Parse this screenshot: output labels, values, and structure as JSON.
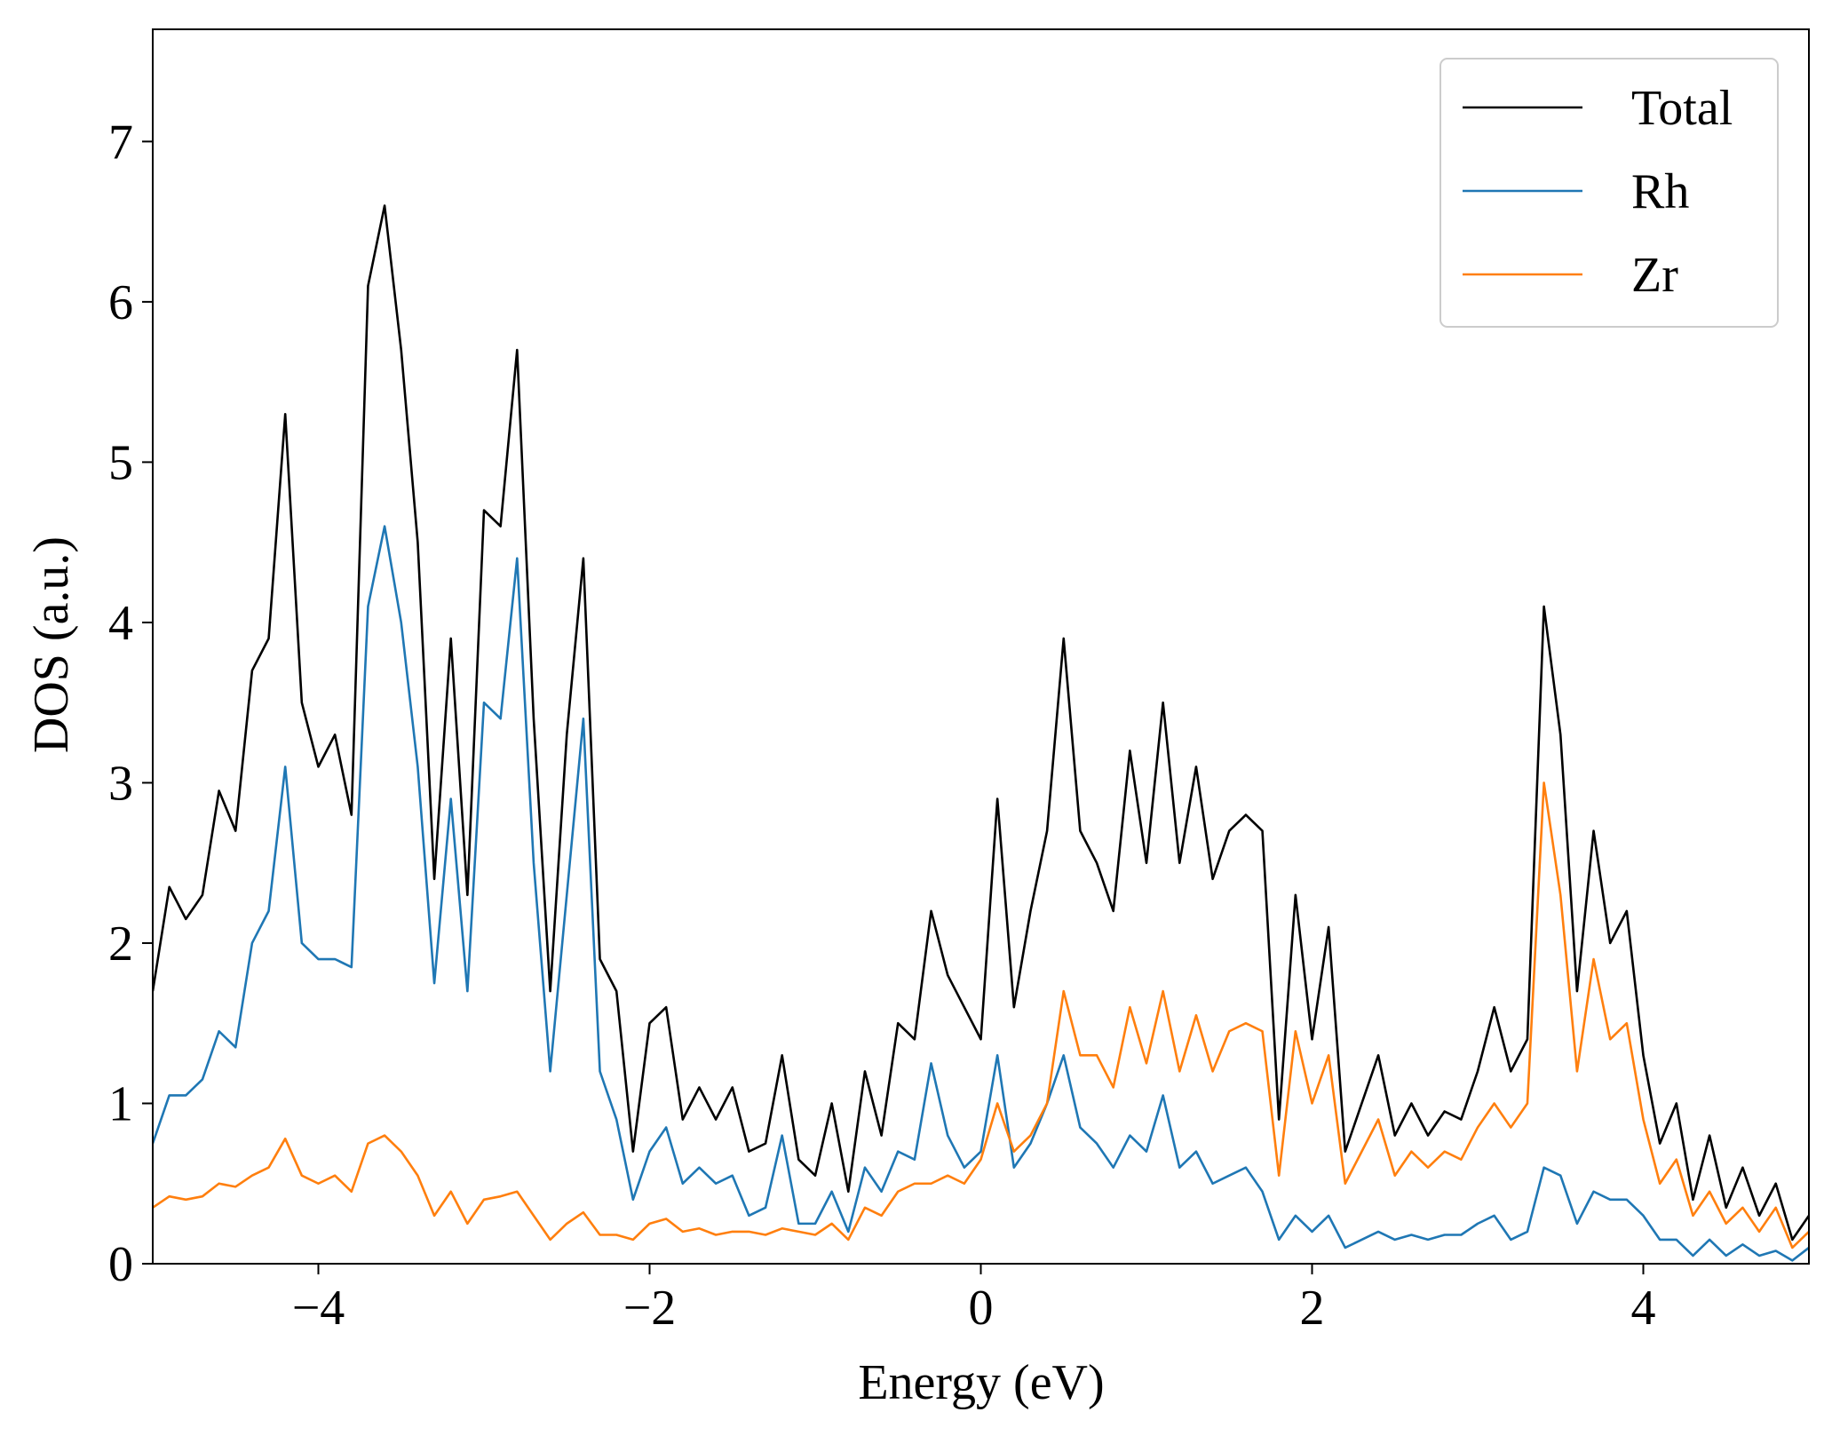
{
  "chart_data": {
    "type": "line",
    "xlabel": "Energy (eV)",
    "ylabel": "DOS (a.u.)",
    "x": [
      -5.0,
      -4.9,
      -4.8,
      -4.7,
      -4.6,
      -4.5,
      -4.4,
      -4.3,
      -4.2,
      -4.1,
      -4.0,
      -3.9,
      -3.8,
      -3.7,
      -3.6,
      -3.5,
      -3.4,
      -3.3,
      -3.2,
      -3.1,
      -3.0,
      -2.9,
      -2.8,
      -2.7,
      -2.6,
      -2.5,
      -2.4,
      -2.3,
      -2.2,
      -2.1,
      -2.0,
      -1.9,
      -1.8,
      -1.7,
      -1.6,
      -1.5,
      -1.4,
      -1.3,
      -1.2,
      -1.1,
      -1.0,
      -0.9,
      -0.8,
      -0.7,
      -0.6,
      -0.5,
      -0.4,
      -0.3,
      -0.2,
      -0.1,
      0.0,
      0.1,
      0.2,
      0.3,
      0.4,
      0.5,
      0.6,
      0.7,
      0.8,
      0.9,
      1.0,
      1.1,
      1.2,
      1.3,
      1.4,
      1.5,
      1.6,
      1.7,
      1.8,
      1.9,
      2.0,
      2.1,
      2.2,
      2.3,
      2.4,
      2.5,
      2.6,
      2.7,
      2.8,
      2.9,
      3.0,
      3.1,
      3.2,
      3.3,
      3.4,
      3.5,
      3.6,
      3.7,
      3.8,
      3.9,
      4.0,
      4.1,
      4.2,
      4.3,
      4.4,
      4.5,
      4.6,
      4.7,
      4.8,
      4.9,
      5.0
    ],
    "series": [
      {
        "name": "Total",
        "color": "#000000",
        "values": [
          1.7,
          2.35,
          2.15,
          2.3,
          2.95,
          2.7,
          3.7,
          3.9,
          5.3,
          3.5,
          3.1,
          3.3,
          2.8,
          6.1,
          6.6,
          5.7,
          4.5,
          2.4,
          3.9,
          2.3,
          4.7,
          4.6,
          5.7,
          3.4,
          1.7,
          3.3,
          4.4,
          1.9,
          1.7,
          0.7,
          1.5,
          1.6,
          0.9,
          1.1,
          0.9,
          1.1,
          0.7,
          0.75,
          1.3,
          0.65,
          0.55,
          1.0,
          0.45,
          1.2,
          0.8,
          1.5,
          1.4,
          2.2,
          1.8,
          1.6,
          1.4,
          2.9,
          1.6,
          2.2,
          2.7,
          3.9,
          2.7,
          2.5,
          2.2,
          3.2,
          2.5,
          3.5,
          2.5,
          3.1,
          2.4,
          2.7,
          2.8,
          2.7,
          0.9,
          2.3,
          1.4,
          2.1,
          0.7,
          1.0,
          1.3,
          0.8,
          1.0,
          0.8,
          0.95,
          0.9,
          1.2,
          1.6,
          1.2,
          1.4,
          4.1,
          3.3,
          1.7,
          2.7,
          2.0,
          2.2,
          1.3,
          0.75,
          1.0,
          0.4,
          0.8,
          0.35,
          0.6,
          0.3,
          0.5,
          0.15,
          0.3
        ]
      },
      {
        "name": "Rh",
        "color": "#1f77b4",
        "values": [
          0.75,
          1.05,
          1.05,
          1.15,
          1.45,
          1.35,
          2.0,
          2.2,
          3.1,
          2.0,
          1.9,
          1.9,
          1.85,
          4.1,
          4.6,
          4.0,
          3.1,
          1.75,
          2.9,
          1.7,
          3.5,
          3.4,
          4.4,
          2.5,
          1.2,
          2.3,
          3.4,
          1.2,
          0.9,
          0.4,
          0.7,
          0.85,
          0.5,
          0.6,
          0.5,
          0.55,
          0.3,
          0.35,
          0.8,
          0.25,
          0.25,
          0.45,
          0.2,
          0.6,
          0.45,
          0.7,
          0.65,
          1.25,
          0.8,
          0.6,
          0.7,
          1.3,
          0.6,
          0.75,
          1.0,
          1.3,
          0.85,
          0.75,
          0.6,
          0.8,
          0.7,
          1.05,
          0.6,
          0.7,
          0.5,
          0.55,
          0.6,
          0.45,
          0.15,
          0.3,
          0.2,
          0.3,
          0.1,
          0.15,
          0.2,
          0.15,
          0.18,
          0.15,
          0.18,
          0.18,
          0.25,
          0.3,
          0.15,
          0.2,
          0.6,
          0.55,
          0.25,
          0.45,
          0.4,
          0.4,
          0.3,
          0.15,
          0.15,
          0.05,
          0.15,
          0.05,
          0.12,
          0.05,
          0.08,
          0.02,
          0.1
        ]
      },
      {
        "name": "Zr",
        "color": "#ff7f0e",
        "values": [
          0.35,
          0.42,
          0.4,
          0.42,
          0.5,
          0.48,
          0.55,
          0.6,
          0.78,
          0.55,
          0.5,
          0.55,
          0.45,
          0.75,
          0.8,
          0.7,
          0.55,
          0.3,
          0.45,
          0.25,
          0.4,
          0.42,
          0.45,
          0.3,
          0.15,
          0.25,
          0.32,
          0.18,
          0.18,
          0.15,
          0.25,
          0.28,
          0.2,
          0.22,
          0.18,
          0.2,
          0.2,
          0.18,
          0.22,
          0.2,
          0.18,
          0.25,
          0.15,
          0.35,
          0.3,
          0.45,
          0.5,
          0.5,
          0.55,
          0.5,
          0.65,
          1.0,
          0.7,
          0.8,
          1.0,
          1.7,
          1.3,
          1.3,
          1.1,
          1.6,
          1.25,
          1.7,
          1.2,
          1.55,
          1.2,
          1.45,
          1.5,
          1.45,
          0.55,
          1.45,
          1.0,
          1.3,
          0.5,
          0.7,
          0.9,
          0.55,
          0.7,
          0.6,
          0.7,
          0.65,
          0.85,
          1.0,
          0.85,
          1.0,
          3.0,
          2.3,
          1.2,
          1.9,
          1.4,
          1.5,
          0.9,
          0.5,
          0.65,
          0.3,
          0.45,
          0.25,
          0.35,
          0.2,
          0.35,
          0.1,
          0.2
        ]
      }
    ],
    "xlim": [
      -5,
      5
    ],
    "ylim": [
      0,
      7.7
    ],
    "xticks": [
      {
        "value": -4,
        "label": "−4"
      },
      {
        "value": -2,
        "label": "−2"
      },
      0,
      2,
      4
    ],
    "yticks": [
      0,
      1,
      2,
      3,
      4,
      5,
      6,
      7
    ],
    "legend": "upper right",
    "grid": false
  }
}
